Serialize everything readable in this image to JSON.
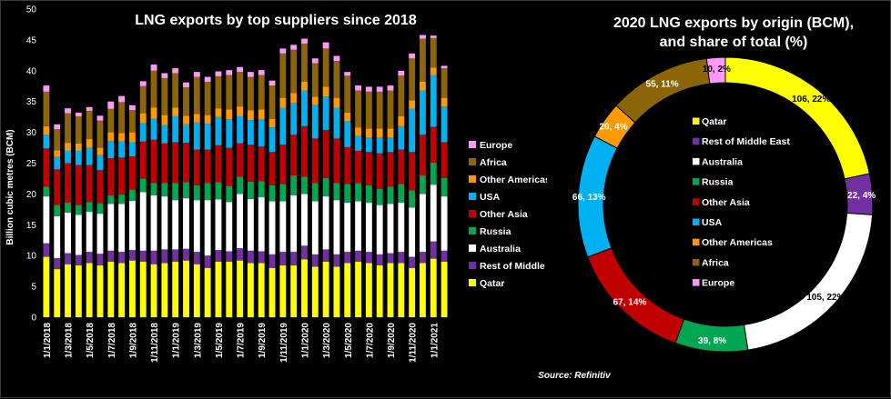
{
  "colors": {
    "Qatar": "#ffff00",
    "Rest of Middle East": "#7030a0",
    "Australia": "#ffffff",
    "Russia": "#00a651",
    "Other Asia": "#c00000",
    "USA": "#00b0f0",
    "Other Americas": "#ff9900",
    "Africa": "#8b6508",
    "Europe": "#ff99ff"
  },
  "chart_data": [
    {
      "type": "bar",
      "stacked": true,
      "title": "LNG exports by top suppliers since 2018",
      "xlabel": "",
      "ylabel": "Billion cubic metres (BCM)",
      "ylim": [
        0,
        50
      ],
      "yticks": [
        0,
        5,
        10,
        15,
        20,
        25,
        30,
        35,
        40,
        45,
        50
      ],
      "legend_position": "right",
      "categories": [
        "1/1/2018",
        "2/1/2018",
        "3/1/2018",
        "4/1/2018",
        "5/1/2018",
        "6/1/2018",
        "7/1/2018",
        "8/1/2018",
        "9/1/2018",
        "10/1/2018",
        "11/1/2018",
        "12/1/2018",
        "1/1/2019",
        "2/1/2019",
        "3/1/2019",
        "4/1/2019",
        "5/1/2019",
        "6/1/2019",
        "7/1/2019",
        "8/1/2019",
        "9/1/2019",
        "10/1/2019",
        "11/1/2019",
        "12/1/2019",
        "1/1/2020",
        "2/1/2020",
        "3/1/2020",
        "4/1/2020",
        "5/1/2020",
        "6/1/2020",
        "7/1/2020",
        "8/1/2020",
        "9/1/2020",
        "10/1/2020",
        "11/1/2020",
        "12/1/2020",
        "1/1/2021",
        "2/1/2021"
      ],
      "tick_labels": [
        "1/1/2018",
        "",
        "1/3/2018",
        "",
        "1/5/2018",
        "",
        "1/7/2018",
        "",
        "1/9/2018",
        "",
        "1/11/2018",
        "",
        "1/1/2019",
        "",
        "1/3/2019",
        "",
        "1/5/2019",
        "",
        "1/7/2019",
        "",
        "1/9/2019",
        "",
        "1/11/2019",
        "",
        "1/1/2020",
        "",
        "1/3/2020",
        "",
        "1/5/2020",
        "",
        "1/7/2020",
        "",
        "1/9/2020",
        "",
        "1/11/2020",
        "",
        "1/1/2021",
        ""
      ],
      "series": [
        {
          "name": "Qatar",
          "values": [
            9.8,
            7.8,
            8.6,
            8.4,
            8.8,
            8.4,
            9.0,
            8.8,
            9.2,
            9.0,
            8.6,
            8.8,
            9.0,
            9.2,
            8.6,
            8.0,
            9.0,
            9.0,
            9.2,
            8.8,
            8.8,
            8.0,
            8.4,
            8.4,
            9.4,
            8.2,
            9.0,
            8.2,
            8.8,
            9.0,
            8.8,
            8.4,
            8.8,
            8.8,
            8.0,
            8.8,
            9.5,
            9.0
          ]
        },
        {
          "name": "Rest of Middle East",
          "values": [
            2.2,
            1.8,
            1.8,
            1.7,
            1.8,
            1.9,
            1.8,
            1.8,
            1.7,
            1.8,
            2.2,
            2.2,
            2.0,
            1.9,
            2.0,
            2.0,
            1.9,
            1.7,
            2.0,
            2.0,
            1.9,
            2.2,
            2.2,
            2.2,
            2.2,
            2.0,
            2.0,
            2.0,
            1.8,
            1.8,
            1.8,
            1.8,
            1.6,
            1.8,
            1.8,
            1.8,
            2.8,
            1.8
          ]
        },
        {
          "name": "Australia",
          "values": [
            7.6,
            6.8,
            6.6,
            6.5,
            6.5,
            6.5,
            7.6,
            7.8,
            8.0,
            9.5,
            9.0,
            8.6,
            8.0,
            8.2,
            8.4,
            9.0,
            8.2,
            8.0,
            8.8,
            8.4,
            8.8,
            8.6,
            8.2,
            9.2,
            8.4,
            8.6,
            8.6,
            8.8,
            8.0,
            8.0,
            8.0,
            8.0,
            8.0,
            8.0,
            8.0,
            9.4,
            9.2,
            8.8
          ]
        },
        {
          "name": "Russia",
          "values": [
            1.6,
            1.8,
            1.6,
            1.6,
            1.6,
            1.7,
            1.4,
            1.5,
            1.8,
            2.2,
            2.0,
            2.2,
            2.8,
            2.6,
            2.4,
            2.8,
            2.8,
            2.6,
            2.8,
            2.8,
            2.6,
            2.6,
            2.8,
            3.2,
            2.8,
            3.0,
            3.0,
            2.8,
            3.0,
            3.0,
            2.8,
            2.6,
            2.8,
            3.0,
            2.8,
            3.0,
            3.6,
            3.0
          ]
        },
        {
          "name": "Other Asia",
          "values": [
            6.2,
            5.8,
            6.4,
            6.5,
            6.0,
            5.4,
            6.0,
            6.0,
            5.4,
            6.0,
            7.0,
            6.4,
            6.6,
            6.4,
            5.8,
            5.4,
            6.0,
            6.2,
            5.4,
            6.0,
            5.6,
            5.4,
            6.4,
            6.6,
            8.2,
            7.2,
            7.8,
            7.2,
            6.0,
            5.2,
            5.4,
            5.8,
            5.6,
            5.6,
            6.2,
            6.6,
            5.8,
            5.8
          ]
        },
        {
          "name": "USA",
          "values": [
            2.2,
            2.0,
            2.0,
            2.3,
            2.8,
            2.4,
            2.8,
            2.6,
            2.3,
            3.0,
            3.4,
            3.0,
            4.2,
            3.0,
            4.4,
            4.2,
            4.6,
            4.6,
            4.4,
            4.0,
            4.4,
            4.0,
            6.0,
            5.2,
            5.8,
            5.4,
            5.4,
            5.0,
            4.2,
            2.4,
            2.4,
            2.6,
            2.4,
            3.8,
            7.0,
            7.2,
            8.4,
            5.8
          ]
        },
        {
          "name": "Other Americas",
          "values": [
            1.4,
            1.1,
            1.3,
            1.2,
            1.4,
            1.2,
            1.4,
            1.4,
            1.6,
            1.6,
            1.8,
            1.6,
            1.4,
            1.4,
            1.4,
            1.4,
            1.4,
            1.6,
            1.6,
            1.6,
            1.6,
            1.4,
            1.6,
            1.6,
            1.4,
            1.4,
            1.6,
            1.6,
            1.4,
            1.4,
            1.4,
            1.4,
            1.4,
            1.6,
            1.4,
            1.4,
            1.2,
            1.4
          ]
        },
        {
          "name": "Africa",
          "values": [
            5.6,
            3.4,
            4.8,
            4.4,
            4.6,
            4.4,
            3.8,
            5.0,
            3.6,
            4.4,
            6.0,
            6.0,
            5.6,
            4.6,
            6.0,
            5.4,
            5.2,
            5.6,
            5.6,
            5.4,
            5.6,
            5.4,
            7.2,
            7.0,
            6.2,
            5.4,
            6.2,
            6.0,
            6.0,
            6.0,
            6.0,
            6.0,
            6.2,
            6.6,
            6.8,
            7.0,
            4.8,
            4.8
          ]
        },
        {
          "name": "Europe",
          "values": [
            1.0,
            0.8,
            0.8,
            0.6,
            0.6,
            0.8,
            1.2,
            1.0,
            0.8,
            0.8,
            1.0,
            0.8,
            0.8,
            0.8,
            0.8,
            0.8,
            0.8,
            0.8,
            0.8,
            0.8,
            0.8,
            0.8,
            0.8,
            0.8,
            0.8,
            0.8,
            1.0,
            0.8,
            0.6,
            0.8,
            0.8,
            0.8,
            0.8,
            0.8,
            0.8,
            0.6,
            0.4,
            0.4
          ]
        }
      ]
    },
    {
      "type": "pie",
      "donut": true,
      "title_line1": "2020 LNG exports by origin (BCM),",
      "title_line2": "and share of total (%)",
      "legend_position": "center",
      "slices": [
        {
          "name": "Qatar",
          "value": 106,
          "label": "106, 22%"
        },
        {
          "name": "Rest of Middle East",
          "value": 22,
          "label": "22, 4%"
        },
        {
          "name": "Australia",
          "value": 105,
          "label": "105, 22%"
        },
        {
          "name": "Russia",
          "value": 39,
          "label": "39, 8%"
        },
        {
          "name": "Other Asia",
          "value": 67,
          "label": "67, 14%"
        },
        {
          "name": "USA",
          "value": 66,
          "label": "66, 13%"
        },
        {
          "name": "Other Americas",
          "value": 20,
          "label": "20, 4%"
        },
        {
          "name": "Africa",
          "value": 55,
          "label": "55, 11%"
        },
        {
          "name": "Europe",
          "value": 10,
          "label": "10, 2%"
        }
      ]
    }
  ],
  "source": "Source: Refinitiv"
}
